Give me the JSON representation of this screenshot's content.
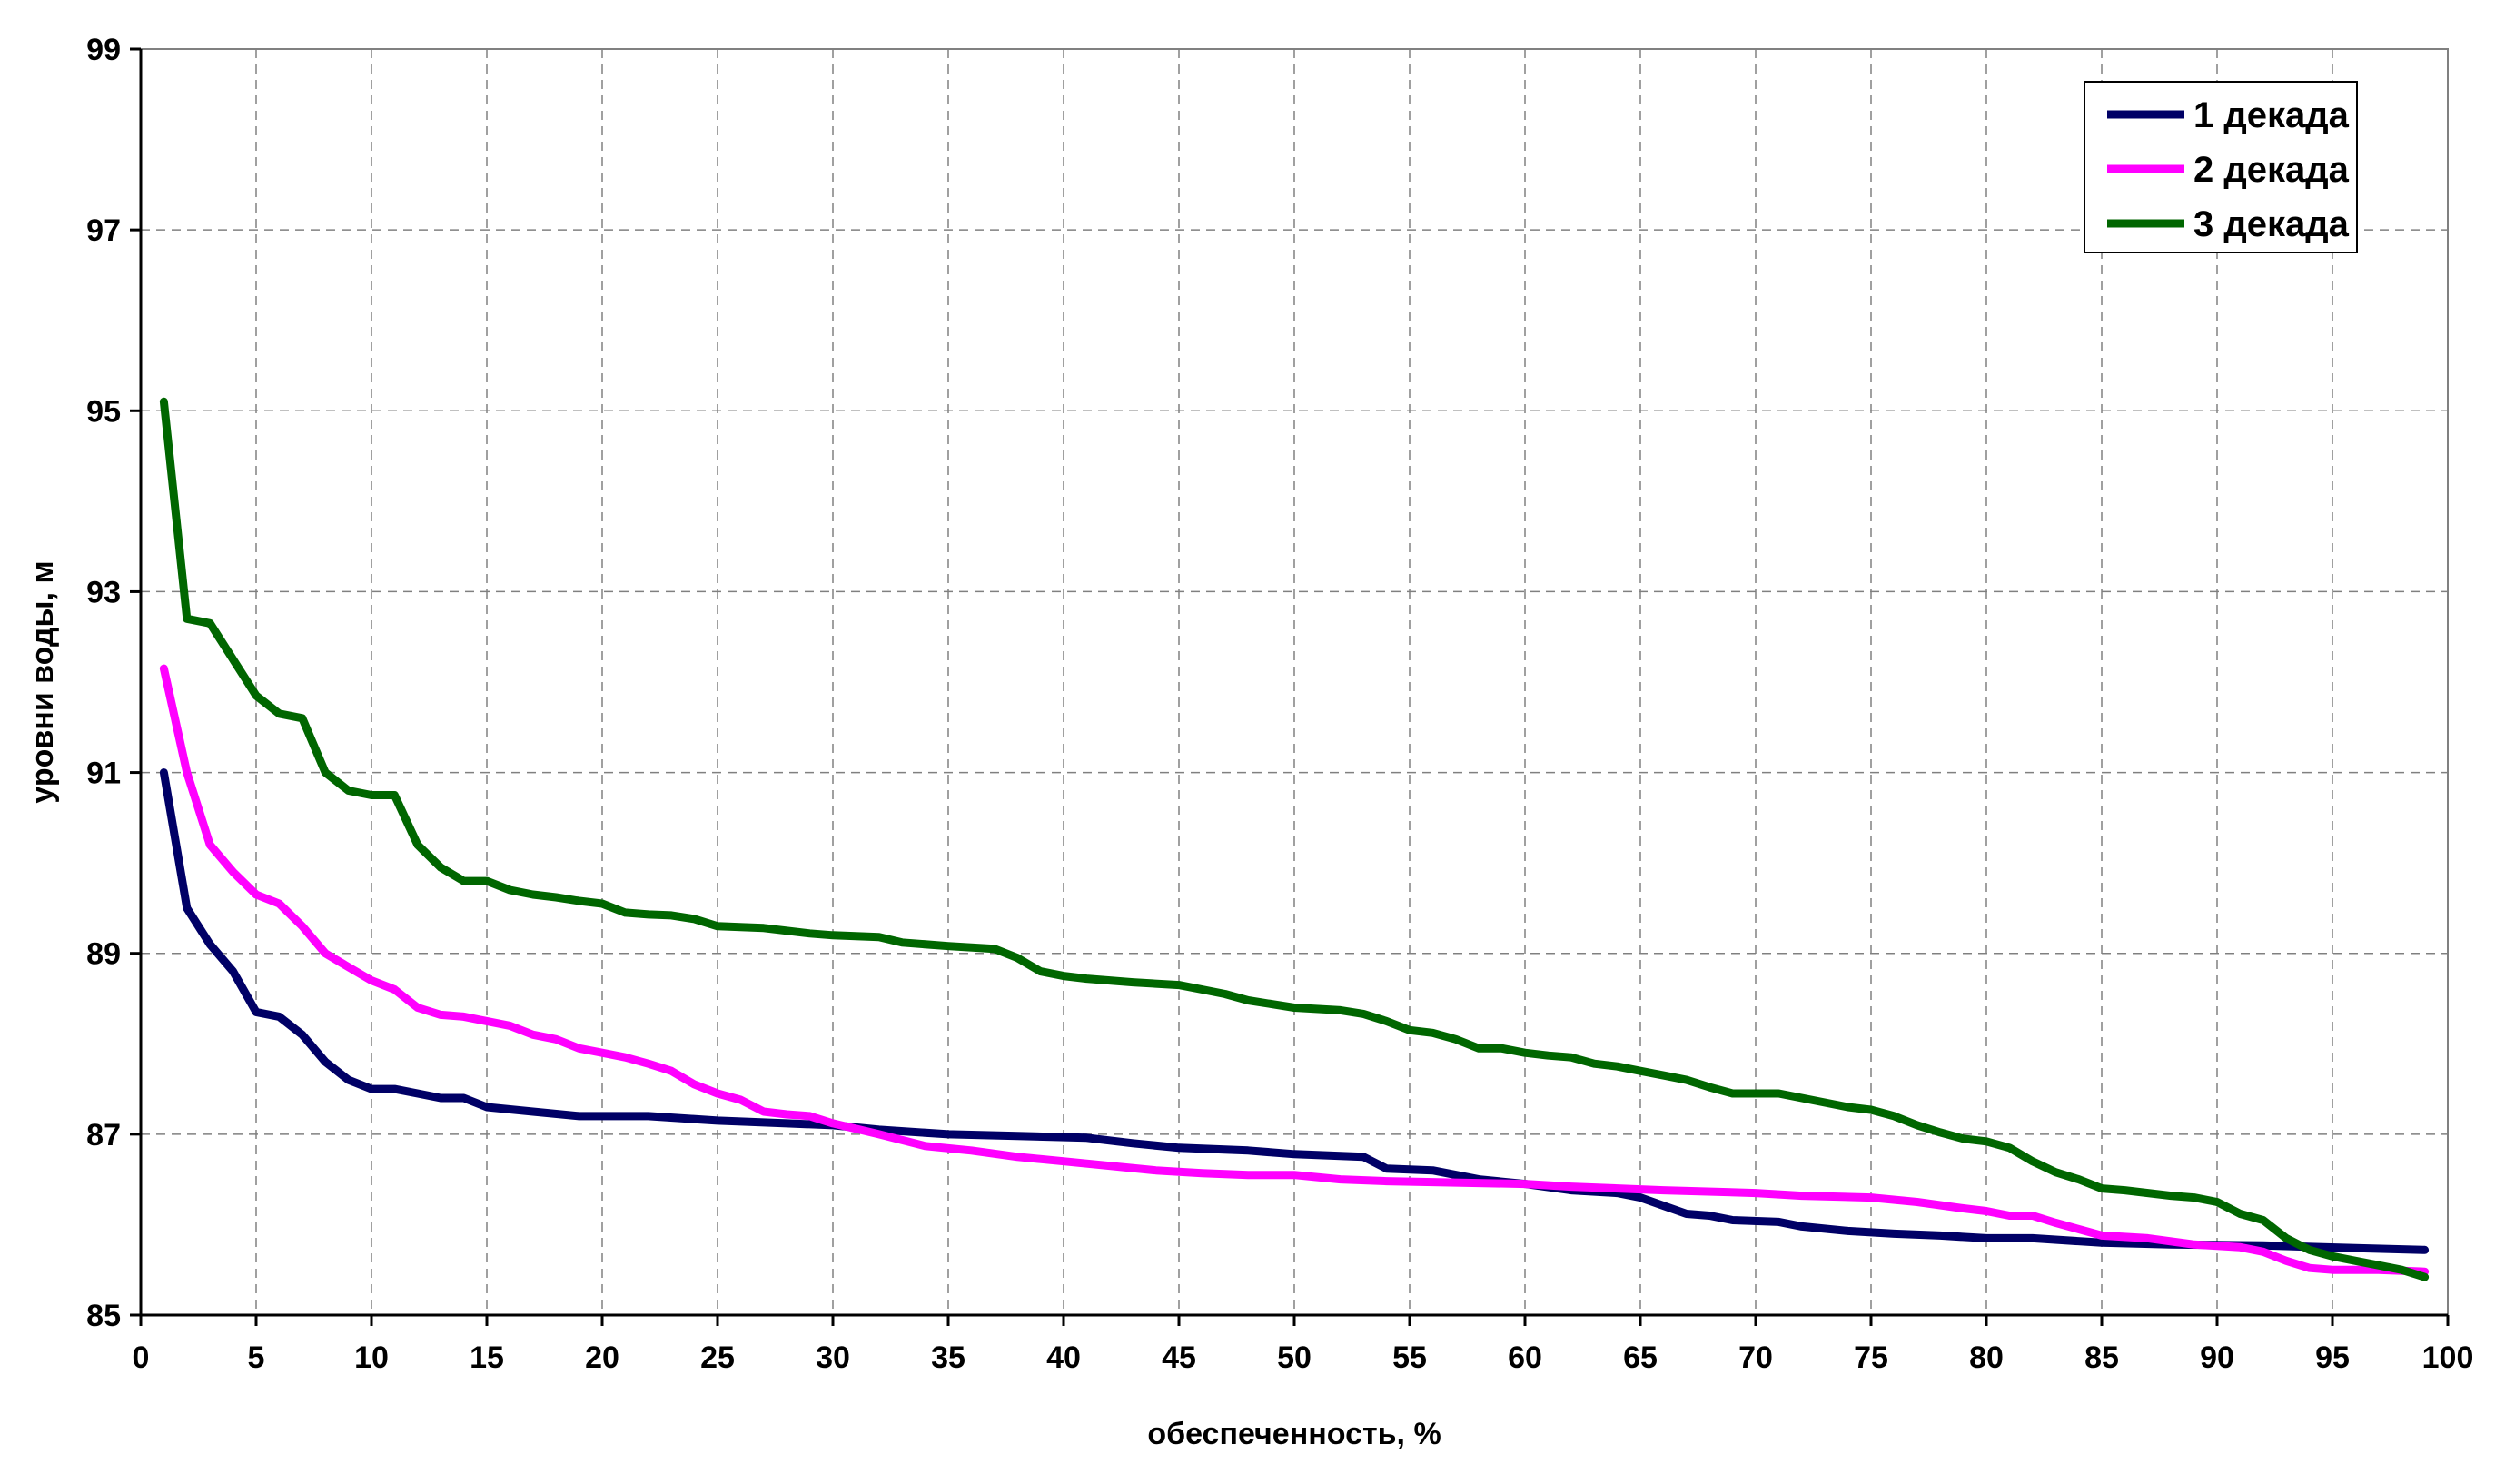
{
  "chart_data": {
    "type": "line",
    "xlabel": "обеспеченность, %",
    "ylabel": "уровни воды, м",
    "xlim": [
      0,
      100
    ],
    "ylim": [
      85,
      99
    ],
    "x_ticks": [
      0,
      5,
      10,
      15,
      20,
      25,
      30,
      35,
      40,
      45,
      50,
      55,
      60,
      65,
      70,
      75,
      80,
      85,
      90,
      95,
      100
    ],
    "y_ticks": [
      85,
      87,
      89,
      91,
      93,
      95,
      97,
      99
    ],
    "grid": true,
    "legend_position": "top-right",
    "series": [
      {
        "name": "1 декада",
        "color": "#000066",
        "points": [
          [
            1,
            91.0
          ],
          [
            2,
            89.5
          ],
          [
            3,
            89.1
          ],
          [
            4,
            88.8
          ],
          [
            5,
            88.35
          ],
          [
            6,
            88.3
          ],
          [
            7,
            88.1
          ],
          [
            8,
            87.8
          ],
          [
            9,
            87.6
          ],
          [
            10,
            87.5
          ],
          [
            11,
            87.5
          ],
          [
            12,
            87.45
          ],
          [
            13,
            87.4
          ],
          [
            14,
            87.4
          ],
          [
            15,
            87.3
          ],
          [
            17,
            87.25
          ],
          [
            19,
            87.2
          ],
          [
            22,
            87.2
          ],
          [
            25,
            87.15
          ],
          [
            28,
            87.12
          ],
          [
            30,
            87.1
          ],
          [
            32,
            87.05
          ],
          [
            35,
            87.0
          ],
          [
            38,
            86.98
          ],
          [
            41,
            86.96
          ],
          [
            43,
            86.9
          ],
          [
            45,
            86.85
          ],
          [
            48,
            86.82
          ],
          [
            50,
            86.78
          ],
          [
            53,
            86.75
          ],
          [
            54,
            86.62
          ],
          [
            56,
            86.6
          ],
          [
            58,
            86.5
          ],
          [
            60,
            86.45
          ],
          [
            62,
            86.38
          ],
          [
            64,
            86.35
          ],
          [
            65,
            86.3
          ],
          [
            67,
            86.12
          ],
          [
            68,
            86.1
          ],
          [
            69,
            86.05
          ],
          [
            71,
            86.03
          ],
          [
            72,
            85.98
          ],
          [
            74,
            85.93
          ],
          [
            76,
            85.9
          ],
          [
            78,
            85.88
          ],
          [
            80,
            85.85
          ],
          [
            82,
            85.85
          ],
          [
            85,
            85.8
          ],
          [
            88,
            85.78
          ],
          [
            92,
            85.77
          ],
          [
            96,
            85.74
          ],
          [
            99,
            85.72
          ]
        ]
      },
      {
        "name": "2 декада",
        "color": "#ff00ff",
        "points": [
          [
            1,
            92.15
          ],
          [
            2,
            91.0
          ],
          [
            3,
            90.2
          ],
          [
            4,
            89.9
          ],
          [
            5,
            89.65
          ],
          [
            6,
            89.55
          ],
          [
            7,
            89.3
          ],
          [
            8,
            89.0
          ],
          [
            9,
            88.85
          ],
          [
            10,
            88.7
          ],
          [
            11,
            88.6
          ],
          [
            12,
            88.4
          ],
          [
            13,
            88.32
          ],
          [
            14,
            88.3
          ],
          [
            15,
            88.25
          ],
          [
            16,
            88.2
          ],
          [
            17,
            88.1
          ],
          [
            18,
            88.05
          ],
          [
            19,
            87.95
          ],
          [
            20,
            87.9
          ],
          [
            21,
            87.85
          ],
          [
            22,
            87.78
          ],
          [
            23,
            87.7
          ],
          [
            24,
            87.55
          ],
          [
            25,
            87.45
          ],
          [
            26,
            87.38
          ],
          [
            27,
            87.25
          ],
          [
            28,
            87.22
          ],
          [
            29,
            87.2
          ],
          [
            30,
            87.12
          ],
          [
            32,
            87.0
          ],
          [
            34,
            86.87
          ],
          [
            36,
            86.82
          ],
          [
            38,
            86.75
          ],
          [
            40,
            86.7
          ],
          [
            42,
            86.65
          ],
          [
            44,
            86.6
          ],
          [
            46,
            86.57
          ],
          [
            48,
            86.55
          ],
          [
            50,
            86.55
          ],
          [
            52,
            86.5
          ],
          [
            54,
            86.48
          ],
          [
            56,
            86.47
          ],
          [
            60,
            86.45
          ],
          [
            62,
            86.42
          ],
          [
            66,
            86.38
          ],
          [
            70,
            86.35
          ],
          [
            72,
            86.32
          ],
          [
            75,
            86.3
          ],
          [
            77,
            86.25
          ],
          [
            79,
            86.18
          ],
          [
            80,
            86.15
          ],
          [
            81,
            86.1
          ],
          [
            82,
            86.1
          ],
          [
            83,
            86.02
          ],
          [
            85,
            85.88
          ],
          [
            87,
            85.85
          ],
          [
            89,
            85.78
          ],
          [
            91,
            85.75
          ],
          [
            92,
            85.7
          ],
          [
            93,
            85.6
          ],
          [
            94,
            85.52
          ],
          [
            95,
            85.5
          ],
          [
            97,
            85.5
          ],
          [
            99,
            85.48
          ]
        ]
      },
      {
        "name": "3 декада",
        "color": "#006600",
        "points": [
          [
            1,
            95.1
          ],
          [
            2,
            92.7
          ],
          [
            3,
            92.65
          ],
          [
            4,
            92.25
          ],
          [
            5,
            91.85
          ],
          [
            6,
            91.65
          ],
          [
            7,
            91.6
          ],
          [
            8,
            91.0
          ],
          [
            9,
            90.8
          ],
          [
            10,
            90.75
          ],
          [
            11,
            90.75
          ],
          [
            12,
            90.2
          ],
          [
            13,
            89.95
          ],
          [
            14,
            89.8
          ],
          [
            15,
            89.8
          ],
          [
            16,
            89.7
          ],
          [
            17,
            89.65
          ],
          [
            18,
            89.62
          ],
          [
            19,
            89.58
          ],
          [
            20,
            89.55
          ],
          [
            21,
            89.45
          ],
          [
            22,
            89.43
          ],
          [
            23,
            89.42
          ],
          [
            24,
            89.38
          ],
          [
            25,
            89.3
          ],
          [
            27,
            89.28
          ],
          [
            29,
            89.22
          ],
          [
            30,
            89.2
          ],
          [
            32,
            89.18
          ],
          [
            33,
            89.12
          ],
          [
            35,
            89.08
          ],
          [
            37,
            89.05
          ],
          [
            38,
            88.95
          ],
          [
            39,
            88.8
          ],
          [
            40,
            88.75
          ],
          [
            41,
            88.72
          ],
          [
            42,
            88.7
          ],
          [
            43,
            88.68
          ],
          [
            45,
            88.65
          ],
          [
            46,
            88.6
          ],
          [
            47,
            88.55
          ],
          [
            48,
            88.48
          ],
          [
            50,
            88.4
          ],
          [
            52,
            88.37
          ],
          [
            53,
            88.33
          ],
          [
            54,
            88.25
          ],
          [
            55,
            88.15
          ],
          [
            56,
            88.12
          ],
          [
            57,
            88.05
          ],
          [
            58,
            87.95
          ],
          [
            59,
            87.95
          ],
          [
            60,
            87.9
          ],
          [
            61,
            87.87
          ],
          [
            62,
            87.85
          ],
          [
            63,
            87.78
          ],
          [
            64,
            87.75
          ],
          [
            65,
            87.7
          ],
          [
            66,
            87.65
          ],
          [
            67,
            87.6
          ],
          [
            68,
            87.52
          ],
          [
            69,
            87.45
          ],
          [
            70,
            87.45
          ],
          [
            71,
            87.45
          ],
          [
            72,
            87.4
          ],
          [
            73,
            87.35
          ],
          [
            74,
            87.3
          ],
          [
            75,
            87.27
          ],
          [
            76,
            87.2
          ],
          [
            77,
            87.1
          ],
          [
            78,
            87.02
          ],
          [
            79,
            86.95
          ],
          [
            80,
            86.92
          ],
          [
            81,
            86.85
          ],
          [
            82,
            86.7
          ],
          [
            83,
            86.58
          ],
          [
            84,
            86.5
          ],
          [
            85,
            86.4
          ],
          [
            86,
            86.38
          ],
          [
            87,
            86.35
          ],
          [
            88,
            86.32
          ],
          [
            89,
            86.3
          ],
          [
            90,
            86.25
          ],
          [
            91,
            86.12
          ],
          [
            92,
            86.05
          ],
          [
            93,
            85.85
          ],
          [
            94,
            85.72
          ],
          [
            95,
            85.65
          ],
          [
            96,
            85.6
          ],
          [
            97,
            85.55
          ],
          [
            98,
            85.5
          ],
          [
            99,
            85.42
          ]
        ]
      }
    ]
  }
}
